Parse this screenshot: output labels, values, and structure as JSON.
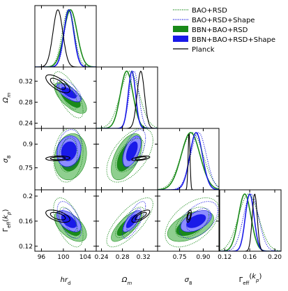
{
  "chart_data": {
    "type": "corner",
    "parameters": [
      {
        "id": "hrd",
        "label": "hr_d",
        "range": [
          94.8,
          106
        ],
        "ticks": [
          96,
          100,
          104
        ]
      },
      {
        "id": "om",
        "label": "Ω_m",
        "range": [
          0.23,
          0.347
        ],
        "ticks": [
          0.24,
          0.28,
          0.32
        ]
      },
      {
        "id": "s8",
        "label": "σ_8",
        "range": [
          0.61,
          1.0
        ],
        "ticks": [
          0.75,
          0.9
        ]
      },
      {
        "id": "gamma",
        "label": "Γ_eff(k_p)",
        "range": [
          0.112,
          0.21
        ],
        "ticks": [
          0.12,
          0.16,
          0.2
        ]
      }
    ],
    "tick_labels": {
      "hrd": [
        "96",
        "100",
        "104"
      ],
      "om": [
        "0.24",
        "0.28",
        "0.32"
      ],
      "s8": [
        "0.75",
        "0.90"
      ],
      "gamma": [
        "0.12",
        "0.16",
        "0.20"
      ],
      "om_row": [
        "0.24",
        "0.28",
        "0.32"
      ],
      "s8_row": [
        "0.75",
        "0.9"
      ],
      "gamma_row": [
        "0.12",
        "0.16",
        "0.2"
      ]
    },
    "series": [
      {
        "name": "BAO+RSD",
        "color": "#1a8a1a",
        "style": "dotted",
        "mean": {
          "hrd": 100.9,
          "om": 0.294,
          "s8": 0.83,
          "gamma": 0.158
        },
        "sigma": {
          "hrd": 1.1,
          "om": 0.018,
          "s8": 0.07,
          "gamma": 0.016
        }
      },
      {
        "name": "BAO+RSD+Shape",
        "color": "#1a1ae0",
        "style": "dotted",
        "mean": {
          "hrd": 101.1,
          "om": 0.302,
          "s8": 0.87,
          "gamma": 0.162
        },
        "sigma": {
          "hrd": 0.9,
          "om": 0.009,
          "s8": 0.05,
          "gamma": 0.012
        }
      },
      {
        "name": "BBN+BAO+RSD",
        "color": "#1a8a1a",
        "style": "filled",
        "mean": {
          "hrd": 101.3,
          "om": 0.288,
          "s8": 0.82,
          "gamma": 0.152
        },
        "sigma": {
          "hrd": 1.2,
          "om": 0.012,
          "s8": 0.06,
          "gamma": 0.01
        }
      },
      {
        "name": "BBN+BAO+RSD+Shape",
        "color": "#1a1ae8",
        "style": "filled",
        "mean": {
          "hrd": 101.0,
          "om": 0.298,
          "s8": 0.855,
          "gamma": 0.16
        },
        "sigma": {
          "hrd": 0.9,
          "om": 0.007,
          "s8": 0.04,
          "gamma": 0.007
        }
      },
      {
        "name": "Planck",
        "color": "#000000",
        "style": "solid",
        "mean": {
          "hrd": 99.0,
          "om": 0.315,
          "s8": 0.81,
          "gamma": 0.168
        },
        "sigma": {
          "hrd": 0.9,
          "om": 0.007,
          "s8": 0.006,
          "gamma": 0.004
        }
      }
    ],
    "legend": {
      "placement": "top-right"
    }
  }
}
